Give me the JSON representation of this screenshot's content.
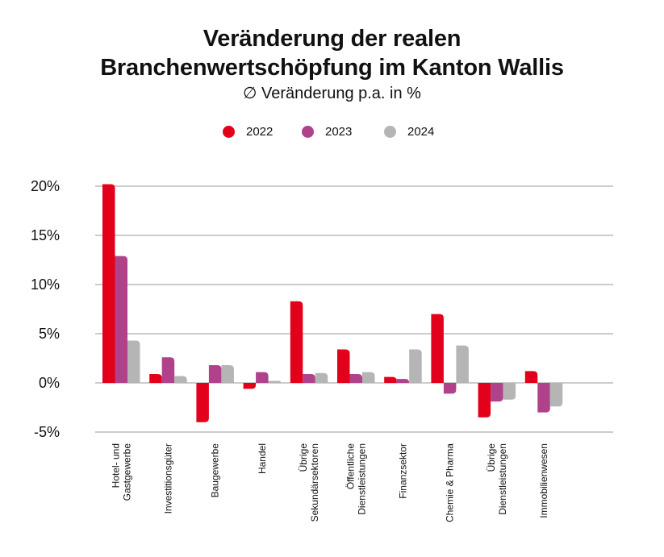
{
  "chart_data": {
    "type": "bar",
    "title_line1": "Veränderung der realen",
    "title_line2": "Branchenwertschöpfung im Kanton Wallis",
    "subtitle": "∅ Veränderung p.a. in %",
    "ylim": [
      -5,
      20
    ],
    "yticks": [
      {
        "value": 20,
        "label": "20%"
      },
      {
        "value": 15,
        "label": "15%"
      },
      {
        "value": 10,
        "label": "10%"
      },
      {
        "value": 5,
        "label": "5%"
      },
      {
        "value": 0,
        "label": "0%"
      },
      {
        "value": -5,
        "label": "-5%"
      }
    ],
    "grid": true,
    "legend_position": "top",
    "categories": [
      [
        "Hotel- und",
        "Gastgewerbe"
      ],
      [
        "Investitionsgüter"
      ],
      [
        "Baugewerbe"
      ],
      [
        "Handel"
      ],
      [
        "Übrige",
        "Sekundärsektoren"
      ],
      [
        "Öffentliche",
        "Dienstleistungen"
      ],
      [
        "Finanzsektor"
      ],
      [
        "Chemie & Pharma"
      ],
      [
        "Übrige",
        "Dienstleistungen"
      ],
      [
        "Immobilienwesen"
      ]
    ],
    "series": [
      {
        "name": "2022",
        "color": "#e2001a",
        "values": [
          20.2,
          0.9,
          -4.0,
          -0.6,
          8.3,
          3.4,
          0.6,
          7.0,
          -3.5,
          1.2
        ]
      },
      {
        "name": "2023",
        "color": "#b0428b",
        "values": [
          12.9,
          2.6,
          1.8,
          1.1,
          0.9,
          0.9,
          0.4,
          -1.1,
          -1.9,
          -3.0
        ]
      },
      {
        "name": "2024",
        "color": "#b5b5b5",
        "values": [
          4.3,
          0.7,
          1.8,
          0.2,
          1.0,
          1.1,
          3.4,
          3.8,
          -1.7,
          -2.4
        ]
      }
    ]
  }
}
